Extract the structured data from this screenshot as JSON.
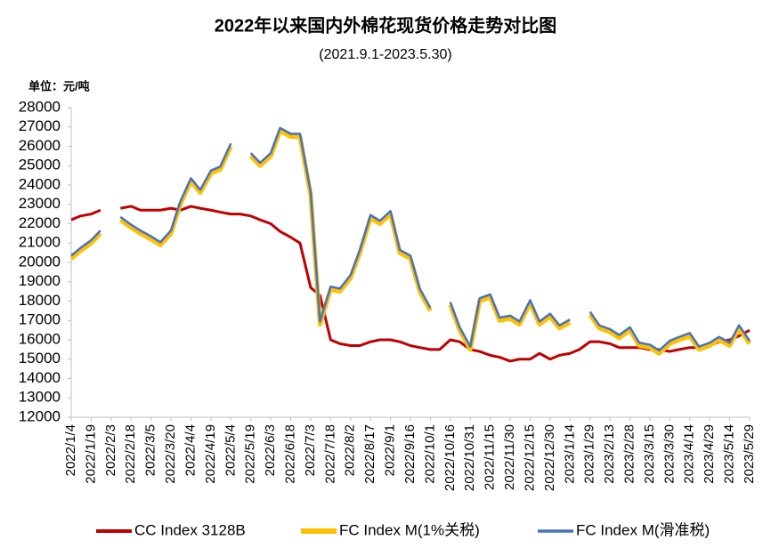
{
  "chart_data": {
    "type": "line",
    "title": "2022年以来国内外棉花现货价格走势对比图",
    "subtitle": "(2021.9.1-2023.5.30)",
    "y_unit_label": "单位：元/吨",
    "x": [
      "2022/1/4",
      "2022/1/11",
      "2022/1/19",
      "2022/1/26",
      "2022/2/3",
      "2022/2/10",
      "2022/2/18",
      "2022/2/25",
      "2022/3/5",
      "2022/3/12",
      "2022/3/20",
      "2022/3/27",
      "2022/4/4",
      "2022/4/11",
      "2022/4/19",
      "2022/4/26",
      "2022/5/4",
      "2022/5/11",
      "2022/5/19",
      "2022/5/26",
      "2022/6/3",
      "2022/6/10",
      "2022/6/18",
      "2022/6/25",
      "2022/7/3",
      "2022/7/10",
      "2022/7/18",
      "2022/7/25",
      "2022/8/2",
      "2022/8/9",
      "2022/8/17",
      "2022/8/24",
      "2022/9/1",
      "2022/9/8",
      "2022/9/16",
      "2022/9/23",
      "2022/10/1",
      "2022/10/8",
      "2022/10/16",
      "2022/10/23",
      "2022/10/31",
      "2022/11/7",
      "2022/11/15",
      "2022/11/22",
      "2022/11/30",
      "2022/12/7",
      "2022/12/15",
      "2022/12/22",
      "2022/12/30",
      "2023/1/6",
      "2023/1/14",
      "2023/1/21",
      "2023/1/29",
      "2023/2/5",
      "2023/2/13",
      "2023/2/20",
      "2023/2/28",
      "2023/3/7",
      "2023/3/15",
      "2023/3/22",
      "2023/3/30",
      "2023/4/6",
      "2023/4/14",
      "2023/4/21",
      "2023/4/29",
      "2023/5/6",
      "2023/5/14",
      "2023/5/21",
      "2023/5/29"
    ],
    "xticks": [
      "2022/1/4",
      "2022/1/19",
      "2022/2/3",
      "2022/2/18",
      "2022/3/5",
      "2022/3/20",
      "2022/4/4",
      "2022/4/19",
      "2022/5/4",
      "2022/5/19",
      "2022/6/3",
      "2022/6/18",
      "2022/7/3",
      "2022/7/18",
      "2022/8/2",
      "2022/8/17",
      "2022/9/1",
      "2022/9/16",
      "2022/10/1",
      "2022/10/16",
      "2022/10/31",
      "2022/11/15",
      "2022/11/30",
      "2022/12/15",
      "2022/12/30",
      "2023/1/14",
      "2023/1/29",
      "2023/2/13",
      "2023/2/28",
      "2023/3/15",
      "2023/3/30",
      "2023/4/14",
      "2023/4/29",
      "2023/5/14",
      "2023/5/29"
    ],
    "series": [
      {
        "name": "CC Index 3128B",
        "color": "#C00000",
        "values": [
          22200,
          22400,
          22500,
          22700,
          null,
          22800,
          22900,
          22700,
          22700,
          22700,
          22800,
          22700,
          22900,
          22800,
          22700,
          22600,
          22500,
          22500,
          22400,
          22200,
          22000,
          21600,
          21300,
          21000,
          18700,
          18300,
          16000,
          15800,
          15700,
          15700,
          15900,
          16000,
          16000,
          15900,
          15700,
          15600,
          15500,
          15500,
          16000,
          15900,
          15500,
          15400,
          15200,
          15100,
          14900,
          15000,
          15000,
          15300,
          15000,
          15200,
          15300,
          15500,
          15900,
          15900,
          15800,
          15600,
          15600,
          15600,
          15500,
          15500,
          15400,
          15500,
          15600,
          15600,
          15700,
          15900,
          16000,
          16200,
          16500
        ]
      },
      {
        "name": "FC Index M(1%关税)",
        "color": "#FFC000",
        "values": [
          20200,
          20600,
          21000,
          21500,
          null,
          22200,
          21800,
          21500,
          21200,
          20900,
          21500,
          23000,
          24200,
          23600,
          24600,
          24800,
          26000,
          null,
          25500,
          25000,
          25500,
          26800,
          26500,
          26500,
          23500,
          16800,
          18600,
          18500,
          19200,
          20500,
          22300,
          22000,
          22500,
          20500,
          20200,
          18500,
          17500,
          null,
          17800,
          16500,
          15500,
          18000,
          18200,
          17000,
          17100,
          16800,
          17900,
          16800,
          17200,
          16600,
          16900,
          null,
          17300,
          16600,
          16400,
          16100,
          16500,
          15700,
          15600,
          15300,
          15800,
          16000,
          16200,
          15500,
          15700,
          16000,
          15700,
          16600,
          15800
        ]
      },
      {
        "name": "FC Index M(滑准税)",
        "color": "#4472C4",
        "values": [
          20350,
          20750,
          21150,
          21650,
          null,
          22350,
          21950,
          21650,
          21350,
          21050,
          21650,
          23150,
          24350,
          23750,
          24750,
          24950,
          26150,
          null,
          25650,
          25150,
          25650,
          26950,
          26650,
          26650,
          23650,
          16950,
          18750,
          18650,
          19350,
          20650,
          22450,
          22150,
          22650,
          20650,
          20350,
          18650,
          17650,
          null,
          17950,
          16650,
          15650,
          18150,
          18350,
          17150,
          17250,
          16950,
          18050,
          16950,
          17350,
          16750,
          17050,
          null,
          17450,
          16750,
          16550,
          16250,
          16650,
          15850,
          15750,
          15450,
          15950,
          16150,
          16350,
          15650,
          15850,
          16150,
          15850,
          16750,
          15950
        ]
      }
    ],
    "ylim": [
      12000,
      28000
    ],
    "yticks": [
      12000,
      13000,
      14000,
      15000,
      16000,
      17000,
      18000,
      19000,
      20000,
      21000,
      22000,
      23000,
      24000,
      25000,
      26000,
      27000,
      28000
    ],
    "grid": false
  }
}
